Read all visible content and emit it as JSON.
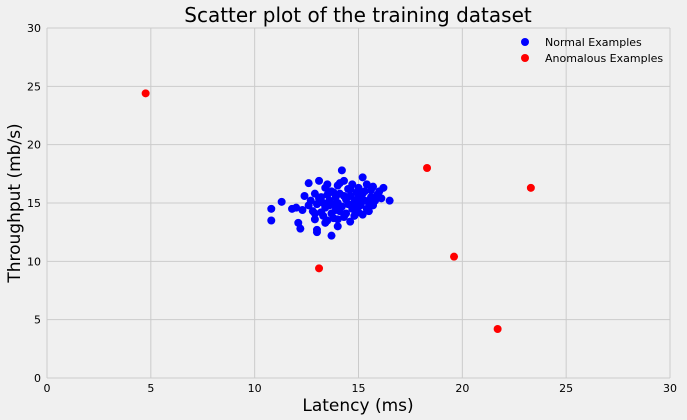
{
  "chart_data": {
    "type": "scatter",
    "title": "Scatter plot of the training dataset",
    "xlabel": "Latency (ms)",
    "ylabel": "Throughput (mb/s)",
    "xlim": [
      0,
      30
    ],
    "ylim": [
      0,
      30
    ],
    "xticks": [
      "0",
      "5",
      "10",
      "15",
      "20",
      "25",
      "30"
    ],
    "yticks": [
      "0",
      "5",
      "10",
      "15",
      "20",
      "25",
      "30"
    ],
    "grid": true,
    "legend_position": "top-right",
    "series": [
      {
        "name": "Normal Examples",
        "color": "#0000ff",
        "points": [
          [
            10.8,
            14.5
          ],
          [
            10.8,
            13.5
          ],
          [
            11.3,
            15.1
          ],
          [
            11.8,
            14.5
          ],
          [
            12.0,
            14.6
          ],
          [
            12.1,
            13.3
          ],
          [
            12.2,
            12.8
          ],
          [
            12.3,
            14.4
          ],
          [
            12.4,
            15.6
          ],
          [
            12.6,
            14.8
          ],
          [
            12.6,
            16.7
          ],
          [
            12.7,
            15.2
          ],
          [
            12.8,
            14.3
          ],
          [
            12.9,
            13.6
          ],
          [
            12.9,
            15.8
          ],
          [
            13.0,
            12.7
          ],
          [
            13.0,
            12.5
          ],
          [
            13.0,
            14.9
          ],
          [
            13.1,
            15.4
          ],
          [
            13.1,
            16.9
          ],
          [
            13.2,
            14.2
          ],
          [
            13.3,
            15.0
          ],
          [
            13.3,
            13.9
          ],
          [
            13.4,
            16.3
          ],
          [
            13.4,
            14.6
          ],
          [
            13.5,
            15.7
          ],
          [
            13.5,
            13.5
          ],
          [
            13.6,
            14.8
          ],
          [
            13.6,
            15.2
          ],
          [
            13.7,
            12.2
          ],
          [
            13.7,
            14.1
          ],
          [
            13.7,
            16.0
          ],
          [
            13.8,
            14.9
          ],
          [
            13.8,
            13.7
          ],
          [
            13.9,
            15.5
          ],
          [
            13.9,
            14.4
          ],
          [
            14.0,
            16.5
          ],
          [
            14.0,
            13.0
          ],
          [
            14.0,
            15.0
          ],
          [
            14.1,
            14.3
          ],
          [
            14.1,
            15.8
          ],
          [
            14.2,
            17.8
          ],
          [
            14.2,
            14.7
          ],
          [
            14.3,
            16.9
          ],
          [
            14.3,
            13.8
          ],
          [
            14.4,
            15.3
          ],
          [
            14.4,
            14.1
          ],
          [
            14.5,
            16.2
          ],
          [
            14.5,
            14.9
          ],
          [
            14.6,
            13.4
          ],
          [
            14.6,
            15.6
          ],
          [
            14.7,
            16.6
          ],
          [
            14.7,
            14.5
          ],
          [
            14.8,
            15.1
          ],
          [
            14.8,
            13.9
          ],
          [
            14.9,
            15.9
          ],
          [
            14.9,
            14.6
          ],
          [
            15.0,
            16.3
          ],
          [
            15.0,
            14.2
          ],
          [
            15.1,
            15.4
          ],
          [
            15.1,
            14.8
          ],
          [
            15.2,
            17.2
          ],
          [
            15.2,
            14.0
          ],
          [
            15.3,
            16.0
          ],
          [
            15.3,
            15.2
          ],
          [
            15.4,
            14.5
          ],
          [
            15.4,
            16.6
          ],
          [
            15.5,
            15.0
          ],
          [
            15.5,
            14.3
          ],
          [
            15.6,
            16.1
          ],
          [
            15.6,
            15.5
          ],
          [
            15.7,
            14.8
          ],
          [
            15.7,
            16.4
          ],
          [
            15.8,
            15.2
          ],
          [
            15.9,
            15.7
          ],
          [
            16.0,
            16.0
          ],
          [
            16.1,
            15.4
          ],
          [
            16.2,
            16.3
          ],
          [
            16.5,
            15.2
          ],
          [
            13.2,
            15.5
          ],
          [
            13.5,
            16.6
          ],
          [
            13.8,
            15.9
          ],
          [
            14.0,
            13.6
          ],
          [
            14.3,
            15.6
          ],
          [
            14.6,
            16.2
          ],
          [
            14.9,
            15.3
          ],
          [
            15.2,
            15.8
          ],
          [
            13.4,
            13.3
          ],
          [
            12.9,
            14.1
          ],
          [
            14.1,
            16.7
          ]
        ]
      },
      {
        "name": "Anomalous Examples",
        "color": "#ff0000",
        "points": [
          [
            4.75,
            24.4
          ],
          [
            13.1,
            9.4
          ],
          [
            18.3,
            18.0
          ],
          [
            19.6,
            10.4
          ],
          [
            21.7,
            4.2
          ],
          [
            23.3,
            16.3
          ]
        ]
      }
    ]
  }
}
